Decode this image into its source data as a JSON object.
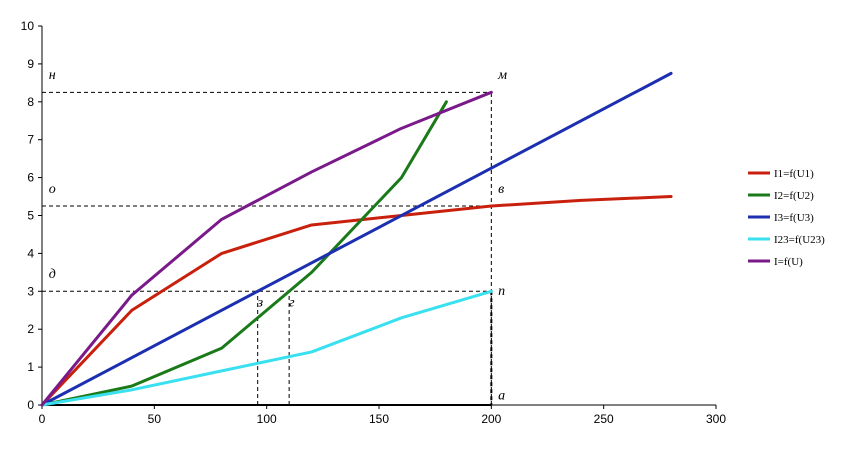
{
  "chart_data": {
    "type": "line",
    "xlim": [
      0,
      300
    ],
    "ylim": [
      0,
      10
    ],
    "x_ticks": [
      0,
      50,
      100,
      150,
      200,
      250,
      300
    ],
    "y_ticks": [
      0,
      1,
      2,
      3,
      4,
      5,
      6,
      7,
      8,
      9,
      10
    ],
    "grid": false,
    "legend_position": "right",
    "series": [
      {
        "name": "I1=f(U1)",
        "color": "#c8200c",
        "x": [
          0,
          40,
          80,
          120,
          160,
          200,
          240,
          280
        ],
        "y": [
          0,
          2.5,
          4.0,
          4.75,
          5.0,
          5.25,
          5.4,
          5.5
        ]
      },
      {
        "name": "I2=f(U2)",
        "color": "#1a7a1a",
        "x": [
          0,
          40,
          80,
          120,
          160,
          180
        ],
        "y": [
          0,
          0.5,
          1.5,
          3.5,
          6.0,
          8.0
        ]
      },
      {
        "name": "I3=f(U3)",
        "color": "#1c2fb0",
        "x": [
          0,
          280
        ],
        "y": [
          0,
          8.75
        ]
      },
      {
        "name": "I23=f(U23)",
        "color": "#38e0f0",
        "x": [
          0,
          40,
          80,
          120,
          160,
          200
        ],
        "y": [
          0,
          0.4,
          0.9,
          1.4,
          2.3,
          3.0
        ]
      },
      {
        "name": "I=f(U)",
        "color": "#7a1a8a",
        "x": [
          0,
          40,
          80,
          120,
          160,
          200
        ],
        "y": [
          0,
          2.9,
          4.9,
          6.15,
          7.3,
          8.25
        ]
      }
    ],
    "guide_lines": [
      {
        "x": [
          0,
          200
        ],
        "y": [
          8.25,
          8.25
        ]
      },
      {
        "x": [
          200,
          200
        ],
        "y": [
          0,
          8.25
        ]
      },
      {
        "x": [
          0,
          200
        ],
        "y": [
          5.25,
          5.25
        ]
      },
      {
        "x": [
          0,
          200
        ],
        "y": [
          3.0,
          3.0
        ]
      },
      {
        "x": [
          96,
          96
        ],
        "y": [
          0,
          3.0
        ]
      },
      {
        "x": [
          110,
          110
        ],
        "y": [
          0,
          3.0
        ]
      }
    ],
    "point_labels": [
      {
        "text": "н",
        "x": 3,
        "y": 8.6
      },
      {
        "text": "м",
        "x": 203,
        "y": 8.6
      },
      {
        "text": "о",
        "x": 3,
        "y": 5.6
      },
      {
        "text": "в",
        "x": 203,
        "y": 5.6
      },
      {
        "text": "д",
        "x": 3,
        "y": 3.35
      },
      {
        "text": "п",
        "x": 203,
        "y": 2.9
      },
      {
        "text": "з",
        "x": 96,
        "y": 2.6
      },
      {
        "text": "г",
        "x": 110,
        "y": 2.6
      },
      {
        "text": "а",
        "x": 203,
        "y": 0.15
      }
    ]
  }
}
